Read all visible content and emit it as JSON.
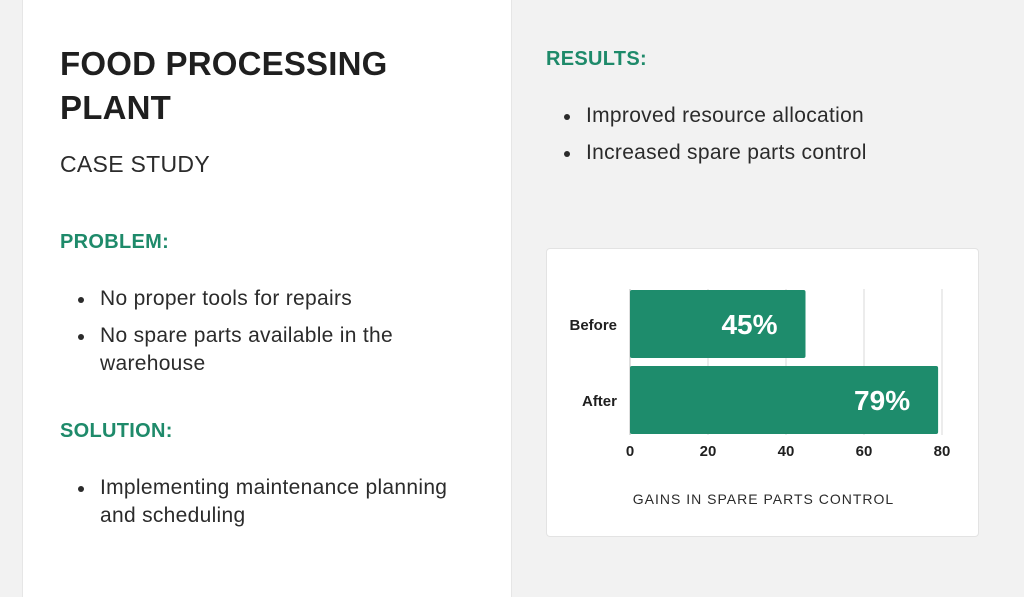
{
  "left": {
    "title": "FOOD PROCESSING PLANT",
    "subtitle": "CASE STUDY",
    "problem_heading": "PROBLEM:",
    "problem_items": [
      "No proper tools for repairs",
      "No spare parts available in the warehouse"
    ],
    "solution_heading": "SOLUTION:",
    "solution_items": [
      "Implementing maintenance planning and scheduling"
    ]
  },
  "right": {
    "results_heading": "RESULTS:",
    "results_items": [
      "Improved resource allocation",
      "Increased spare parts control"
    ]
  },
  "colors": {
    "accent": "#1e8a6a",
    "bar": "#1e8c6c"
  },
  "chart_data": {
    "type": "bar",
    "orientation": "horizontal",
    "categories": [
      "Before",
      "After"
    ],
    "values": [
      45,
      79
    ],
    "data_labels": [
      "45%",
      "79%"
    ],
    "xlim": [
      0,
      80
    ],
    "xticks": [
      0,
      20,
      40,
      60,
      80
    ],
    "caption": "GAINS IN SPARE PARTS CONTROL",
    "grid": true
  }
}
